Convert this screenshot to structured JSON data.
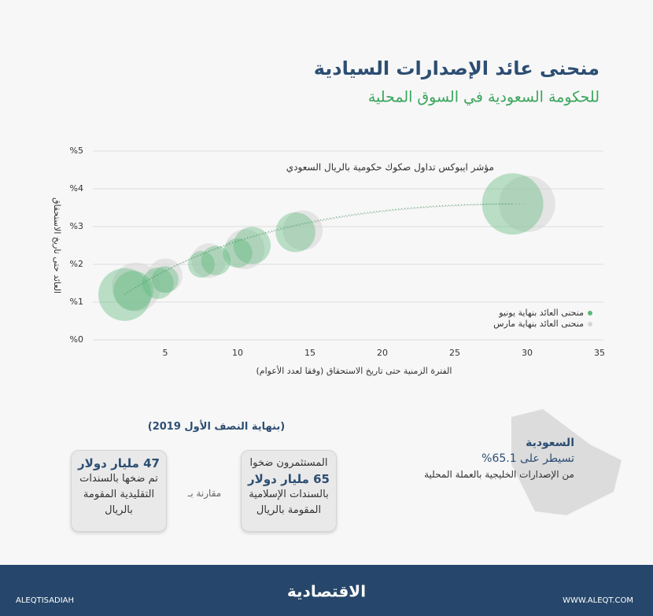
{
  "chart_data": {
    "type": "bubble",
    "title": "منحنى عائد الإصدارات السيادية",
    "subtitle": "للحكومة السعودية في السوق المحلية",
    "chart_subtitle": "مؤشر ايبوكس تداول صكوك حكومية بالريال السعودي",
    "xlabel": "الفترة الزمنية حتى تاريخ الاستحقاق (وفقا لعدد الأعوام)",
    "ylabel": "العائد حتى تاريخ الاستحقاق",
    "xlim": [
      0,
      35
    ],
    "xticks": [
      5,
      10,
      15,
      20,
      25,
      30,
      35
    ],
    "ylim": [
      0,
      5
    ],
    "yticks": [
      {
        "value": 0,
        "label": "%0"
      },
      {
        "value": 1,
        "label": "%1"
      },
      {
        "value": 2,
        "label": "%2"
      },
      {
        "value": 3,
        "label": "%3"
      },
      {
        "value": 4,
        "label": "%4"
      },
      {
        "value": 5,
        "label": "%5"
      }
    ],
    "grid": true,
    "legend": "lower right",
    "series": [
      {
        "name": "منحنى العائد بنهاية مارس",
        "color": "#d6d6d6",
        "x": [
          3,
          5,
          8,
          10.5,
          14.5,
          30
        ],
        "values": [
          1.4,
          1.7,
          2.1,
          2.4,
          2.9,
          3.6
        ],
        "sizes": [
          60,
          30,
          30,
          40,
          40,
          80
        ]
      },
      {
        "name": "منحنى العائد بنهاية يونيو",
        "color": "#5cb87a",
        "x": [
          2.2,
          2.8,
          4.5,
          5,
          7.5,
          8.5,
          10,
          11,
          14,
          29
        ],
        "values": [
          1.2,
          1.3,
          1.5,
          1.6,
          2.0,
          2.1,
          2.3,
          2.5,
          2.85,
          3.6
        ],
        "sizes": [
          70,
          40,
          25,
          18,
          18,
          22,
          22,
          35,
          40,
          95
        ]
      }
    ]
  },
  "period": "(بنهاية النصف الأول 2019)",
  "box_right": [
    "المستثمرون ضخوا",
    "65 مليار دولار",
    "بالسندات الإسلامية",
    "المقومة بالريال"
  ],
  "compare": "مقارنة بـ",
  "box_left": [
    "47 مليار دولار",
    "تم ضخها بالسندات",
    "التقليدية المقومة",
    "بالريال"
  ],
  "saudi": [
    "السعودية",
    "تسيطر على 65.1%",
    "من الإصدارات الخليجية بالعملة المحلية"
  ],
  "footer": {
    "social": "ALEQTISADIAH",
    "logo": "الاقتصادية",
    "site": "WWW.ALEQT.COM"
  }
}
